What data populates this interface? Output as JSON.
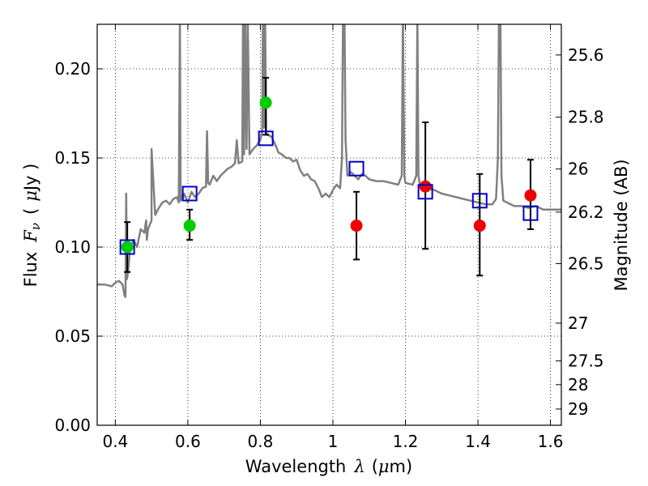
{
  "chart_data": {
    "type": "scatter",
    "title": "",
    "xlabel": "Wavelength",
    "xlabel_symbol": "λ",
    "xlabel_unit_prefix": "(",
    "xlabel_unit_mu": "μ",
    "xlabel_unit_rest": "m)",
    "ylabel": "Flux",
    "ylabel_symbol": "F",
    "ylabel_subscript": "ν",
    "ylabel_unit_open": "(",
    "ylabel_unit_mu": "μ",
    "ylabel_unit_rest": "Jy )",
    "y2label": "Magnitude (AB)",
    "xlim": [
      0.35,
      1.63
    ],
    "ylim": [
      0.0,
      0.225
    ],
    "grid": true,
    "grid_style": "dotted",
    "x_ticks": [
      {
        "value": 0.4,
        "label": "0.4"
      },
      {
        "value": 0.6,
        "label": "0.6"
      },
      {
        "value": 0.8,
        "label": "0.8"
      },
      {
        "value": 1.0,
        "label": "1"
      },
      {
        "value": 1.2,
        "label": "1.2"
      },
      {
        "value": 1.4,
        "label": "1.4"
      },
      {
        "value": 1.6,
        "label": "1.6"
      }
    ],
    "y_ticks": [
      {
        "value": 0.0,
        "label": "0.00"
      },
      {
        "value": 0.05,
        "label": "0.05"
      },
      {
        "value": 0.1,
        "label": "0.10"
      },
      {
        "value": 0.15,
        "label": "0.15"
      },
      {
        "value": 0.2,
        "label": "0.20"
      }
    ],
    "y2_ticks": [
      {
        "label": "25.6",
        "flux": 0.2078
      },
      {
        "label": "25.8",
        "flux": 0.1729
      },
      {
        "label": "26",
        "flux": 0.1438
      },
      {
        "label": "26.2",
        "flux": 0.1196
      },
      {
        "label": "26.5",
        "flux": 0.0907
      },
      {
        "label": "27",
        "flux": 0.0573
      },
      {
        "label": "27.5",
        "flux": 0.0361
      },
      {
        "label": "28",
        "flux": 0.0228
      },
      {
        "label": "29",
        "flux": 0.0091
      }
    ],
    "colors": {
      "model": "#808080",
      "green": "#00cc00",
      "red": "#ee0000",
      "model_box": "#0000cc",
      "errorbar": "#000000"
    },
    "model_spectrum": {
      "name": "",
      "x": [
        0.35,
        0.37,
        0.39,
        0.4,
        0.41,
        0.42,
        0.425,
        0.428,
        0.43,
        0.432,
        0.435,
        0.437,
        0.44,
        0.45,
        0.46,
        0.47,
        0.48,
        0.485,
        0.487,
        0.49,
        0.5,
        0.5,
        0.51,
        0.52,
        0.53,
        0.54,
        0.55,
        0.56,
        0.57,
        0.575,
        0.578,
        0.58,
        0.583,
        0.586,
        0.59,
        0.6,
        0.61,
        0.62,
        0.63,
        0.64,
        0.65,
        0.653,
        0.656,
        0.66,
        0.67,
        0.68,
        0.69,
        0.7,
        0.71,
        0.72,
        0.73,
        0.735,
        0.74,
        0.75,
        0.752,
        0.755,
        0.758,
        0.762,
        0.765,
        0.77,
        0.78,
        0.79,
        0.8,
        0.805,
        0.807,
        0.81,
        0.813,
        0.816,
        0.82,
        0.83,
        0.84,
        0.85,
        0.86,
        0.87,
        0.88,
        0.89,
        0.9,
        0.91,
        0.92,
        0.93,
        0.94,
        0.95,
        0.96,
        0.97,
        0.98,
        0.99,
        1.0,
        1.01,
        1.02,
        1.025,
        1.028,
        1.03,
        1.032,
        1.035,
        1.04,
        1.05,
        1.06,
        1.07,
        1.08,
        1.09,
        1.1,
        1.12,
        1.14,
        1.16,
        1.18,
        1.19,
        1.193,
        1.197,
        1.2,
        1.22,
        1.23,
        1.233,
        1.236,
        1.24,
        1.26,
        1.28,
        1.3,
        1.32,
        1.34,
        1.36,
        1.38,
        1.4,
        1.42,
        1.44,
        1.45,
        1.455,
        1.458,
        1.462,
        1.465,
        1.47,
        1.48,
        1.5,
        1.52,
        1.54,
        1.56,
        1.58,
        1.6,
        1.63
      ],
      "y": [
        0.079,
        0.079,
        0.078,
        0.08,
        0.081,
        0.079,
        0.073,
        0.072,
        0.13,
        0.082,
        0.086,
        0.09,
        0.098,
        0.104,
        0.1,
        0.11,
        0.108,
        0.115,
        0.104,
        0.11,
        0.115,
        0.155,
        0.118,
        0.122,
        0.125,
        0.126,
        0.124,
        0.127,
        0.128,
        0.125,
        0.23,
        0.126,
        0.129,
        0.127,
        0.13,
        0.125,
        0.131,
        0.128,
        0.13,
        0.133,
        0.134,
        0.165,
        0.136,
        0.135,
        0.14,
        0.137,
        0.14,
        0.142,
        0.144,
        0.145,
        0.147,
        0.16,
        0.147,
        0.148,
        0.23,
        0.152,
        0.23,
        0.155,
        0.23,
        0.152,
        0.155,
        0.157,
        0.16,
        0.165,
        0.23,
        0.167,
        0.23,
        0.164,
        0.163,
        0.162,
        0.158,
        0.153,
        0.152,
        0.15,
        0.15,
        0.148,
        0.149,
        0.143,
        0.14,
        0.141,
        0.138,
        0.137,
        0.133,
        0.128,
        0.13,
        0.128,
        0.132,
        0.135,
        0.133,
        0.15,
        0.23,
        0.23,
        0.23,
        0.16,
        0.14,
        0.142,
        0.14,
        0.138,
        0.141,
        0.14,
        0.138,
        0.137,
        0.137,
        0.136,
        0.135,
        0.14,
        0.23,
        0.14,
        0.136,
        0.135,
        0.14,
        0.23,
        0.14,
        0.135,
        0.133,
        0.132,
        0.13,
        0.129,
        0.128,
        0.127,
        0.126,
        0.125,
        0.124,
        0.124,
        0.127,
        0.15,
        0.23,
        0.23,
        0.14,
        0.126,
        0.125,
        0.123,
        0.123,
        0.122,
        0.123,
        0.121,
        0.121,
        0.121
      ]
    },
    "series": [
      {
        "name": "",
        "marker": "filled-circle",
        "color": "#00cc00",
        "x": [
          0.433,
          0.605,
          0.815
        ],
        "y": [
          0.1,
          0.112,
          0.181
        ]
      },
      {
        "name": "",
        "marker": "filled-circle",
        "color": "#ee0000",
        "x": [
          1.065,
          1.255,
          1.405,
          1.545
        ],
        "y": [
          0.112,
          0.134,
          0.112,
          0.129
        ]
      },
      {
        "name": "",
        "marker": "open-square",
        "color": "#0000cc",
        "x": [
          0.433,
          0.605,
          0.815,
          1.065,
          1.255,
          1.405,
          1.545
        ],
        "y": [
          0.1,
          0.13,
          0.161,
          0.144,
          0.131,
          0.126,
          0.119
        ]
      }
    ],
    "errorbars": [
      {
        "x": 0.433,
        "y": 0.1,
        "low": 0.086,
        "high": 0.114
      },
      {
        "x": 0.605,
        "y": 0.112,
        "low": 0.104,
        "high": 0.121
      },
      {
        "x": 0.815,
        "y": 0.181,
        "low": 0.163,
        "high": 0.195
      },
      {
        "x": 1.065,
        "y": 0.112,
        "low": 0.093,
        "high": 0.131
      },
      {
        "x": 1.255,
        "y": 0.134,
        "low": 0.099,
        "high": 0.17
      },
      {
        "x": 1.405,
        "y": 0.112,
        "low": 0.084,
        "high": 0.141
      },
      {
        "x": 1.545,
        "y": 0.129,
        "low": 0.11,
        "high": 0.149
      }
    ]
  }
}
